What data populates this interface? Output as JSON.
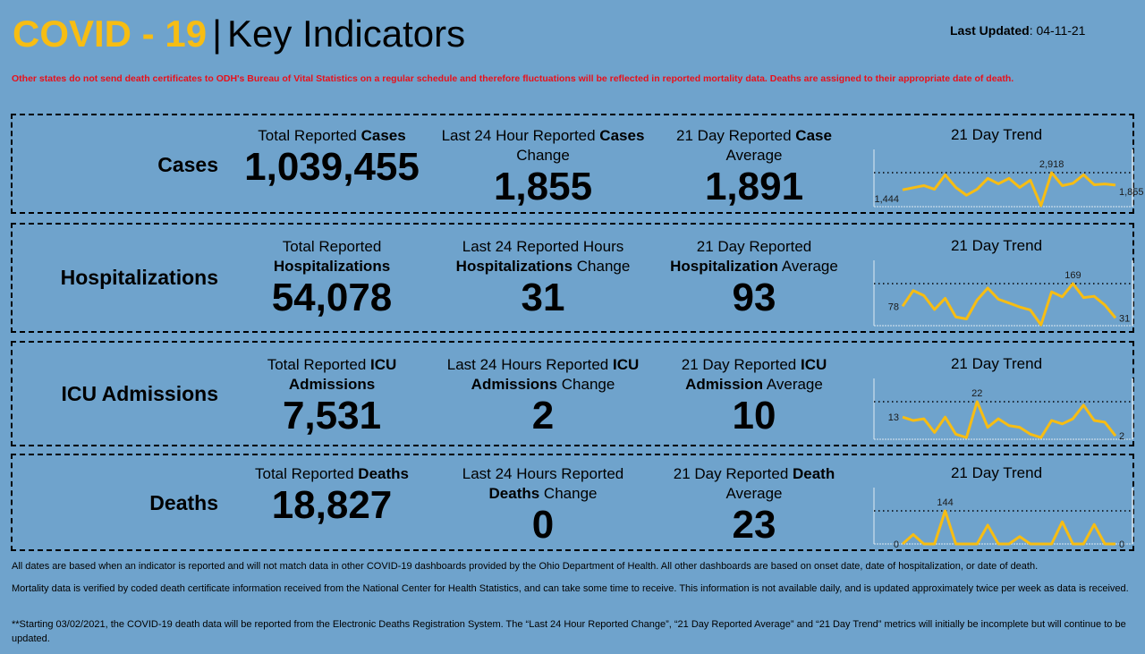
{
  "header": {
    "title_covid": "COVID - 19",
    "separator": "|",
    "title_rest": "Key Indicators",
    "last_updated_label": "Last Updated",
    "last_updated_value": ": 04-11-21"
  },
  "notice": "Other states do not send death certificates to ODH's Bureau of Vital Statistics on a regular schedule and therefore fluctuations will be reflected in reported mortality data. Deaths are assigned to their appropriate date of death.",
  "colors": {
    "background": "#6fa3cc",
    "accent": "#f7bd13",
    "notice": "#e8101a"
  },
  "panels": [
    {
      "label": "Cases",
      "total": {
        "pre": "Total Reported ",
        "bold": "Cases",
        "post": "",
        "value": "1,039,455"
      },
      "change": {
        "pre": "Last 24 Hour Reported ",
        "bold": "Cases",
        "post": " Change",
        "value": "1,855"
      },
      "average": {
        "pre": "21 Day Reported ",
        "bold": "Case",
        "post": " Average",
        "value": "1,891"
      },
      "trend_title": "21 Day Trend",
      "trend": {
        "values": [
          1444,
          1625,
          1806,
          1496,
          2737,
          1651,
          979,
          1496,
          2427,
          1962,
          2427,
          1651,
          2272,
          80,
          2918,
          1806,
          2000,
          2737,
          1880,
          1950,
          1855
        ],
        "first_label": "1,444",
        "max_label": "2,918",
        "last_label": "1,855"
      }
    },
    {
      "label": "Hospitalizations",
      "total": {
        "pre": "Total Reported ",
        "bold": "Hospitalizations",
        "post": "",
        "value": "54,078"
      },
      "change": {
        "pre": "Last 24 Reported Hours ",
        "bold": "Hospitalizations",
        "post": " Change",
        "value": "31"
      },
      "average": {
        "pre": "21 Day Reported ",
        "bold": "Hospitalization",
        "post": " Average",
        "value": "93"
      },
      "trend_title": "21 Day Trend",
      "trend": {
        "values": [
          78,
          141,
          121,
          65,
          110,
          35,
          27,
          103,
          151,
          106,
          91,
          75,
          63,
          3,
          136,
          116,
          169,
          113,
          118,
          83,
          31
        ],
        "first_label": "78",
        "max_label": "169",
        "last_label": "31"
      }
    },
    {
      "label": "ICU Admissions",
      "total": {
        "pre": "Total Reported ",
        "bold": "ICU Admissions",
        "post": "",
        "value": "7,531"
      },
      "change": {
        "pre": "Last 24 Hours Reported ",
        "bold": "ICU Admissions",
        "post": " Change",
        "value": "2"
      },
      "average": {
        "pre": "21 Day Reported ",
        "bold": "ICU Admission",
        "post": " Average",
        "value": "10"
      },
      "trend_title": "21 Day Trend",
      "trend": {
        "values": [
          13,
          11,
          12,
          4,
          13,
          3,
          1,
          22,
          7,
          12,
          8,
          7,
          3,
          1,
          11,
          9,
          12,
          20,
          11,
          10,
          2
        ],
        "first_label": "13",
        "max_label": "22",
        "last_label": "2"
      }
    },
    {
      "label": "Deaths",
      "total": {
        "pre": "Total Reported ",
        "bold": "Deaths",
        "post": "",
        "value": "18,827"
      },
      "change": {
        "pre": "Last 24 Hours Reported ",
        "bold": "Deaths",
        "post": " Change",
        "value": "0"
      },
      "average": {
        "pre": "21 Day Reported ",
        "bold": "Death",
        "post": " Average",
        "value": "23"
      },
      "trend_title": "21 Day Trend",
      "trend": {
        "values": [
          0,
          41,
          0,
          0,
          144,
          0,
          0,
          0,
          82,
          0,
          0,
          32,
          0,
          0,
          0,
          96,
          0,
          0,
          85,
          0,
          0
        ],
        "first_label": "0",
        "max_label": "144",
        "last_label": "0"
      }
    }
  ],
  "footer": [
    "All dates are based when an indicator is reported and will not match data in other COVID-19 dashboards provided by the Ohio Department of Health. All other dashboards are based on onset date, date of hospitalization, or date of death.",
    "Mortality data is verified by coded death certificate information received from the National Center for Health Statistics, and can take some time to receive. This information is not available daily, and is updated approximately twice per week as data is received.",
    "**Starting 03/02/2021, the COVID-19 death data will be reported from the Electronic Deaths Registration System. The “Last 24 Hour Reported Change”, “21 Day Reported Average” and “21 Day Trend” metrics will initially be incomplete but will continue to be updated."
  ]
}
